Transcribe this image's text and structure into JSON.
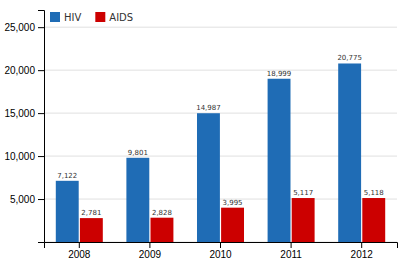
{
  "chart_data": {
    "type": "bar",
    "categories": [
      "2008",
      "2009",
      "2010",
      "2011",
      "2012"
    ],
    "series": [
      {
        "name": "HIV",
        "color": "#1f6cb5",
        "values": [
          7122,
          9801,
          14987,
          18999,
          20775
        ],
        "value_labels": [
          "7,122",
          "9,801",
          "14,987",
          "18,999",
          "20,775"
        ]
      },
      {
        "name": "AIDS",
        "color": "#cc0000",
        "values": [
          2781,
          2828,
          3995,
          5117,
          5118
        ],
        "value_labels": [
          "2,781",
          "2,828",
          "3,995",
          "5,117",
          "5,118"
        ]
      }
    ],
    "ylim": [
      0,
      27000
    ],
    "yticks": [
      {
        "value": 0,
        "label": ""
      },
      {
        "value": 5000,
        "label": "5,000"
      },
      {
        "value": 10000,
        "label": "10,000"
      },
      {
        "value": 15000,
        "label": "15,000"
      },
      {
        "value": 20000,
        "label": "20,000"
      },
      {
        "value": 25000,
        "label": "25,000"
      }
    ],
    "grid": true,
    "legend": "upper left",
    "data_labels": true
  }
}
